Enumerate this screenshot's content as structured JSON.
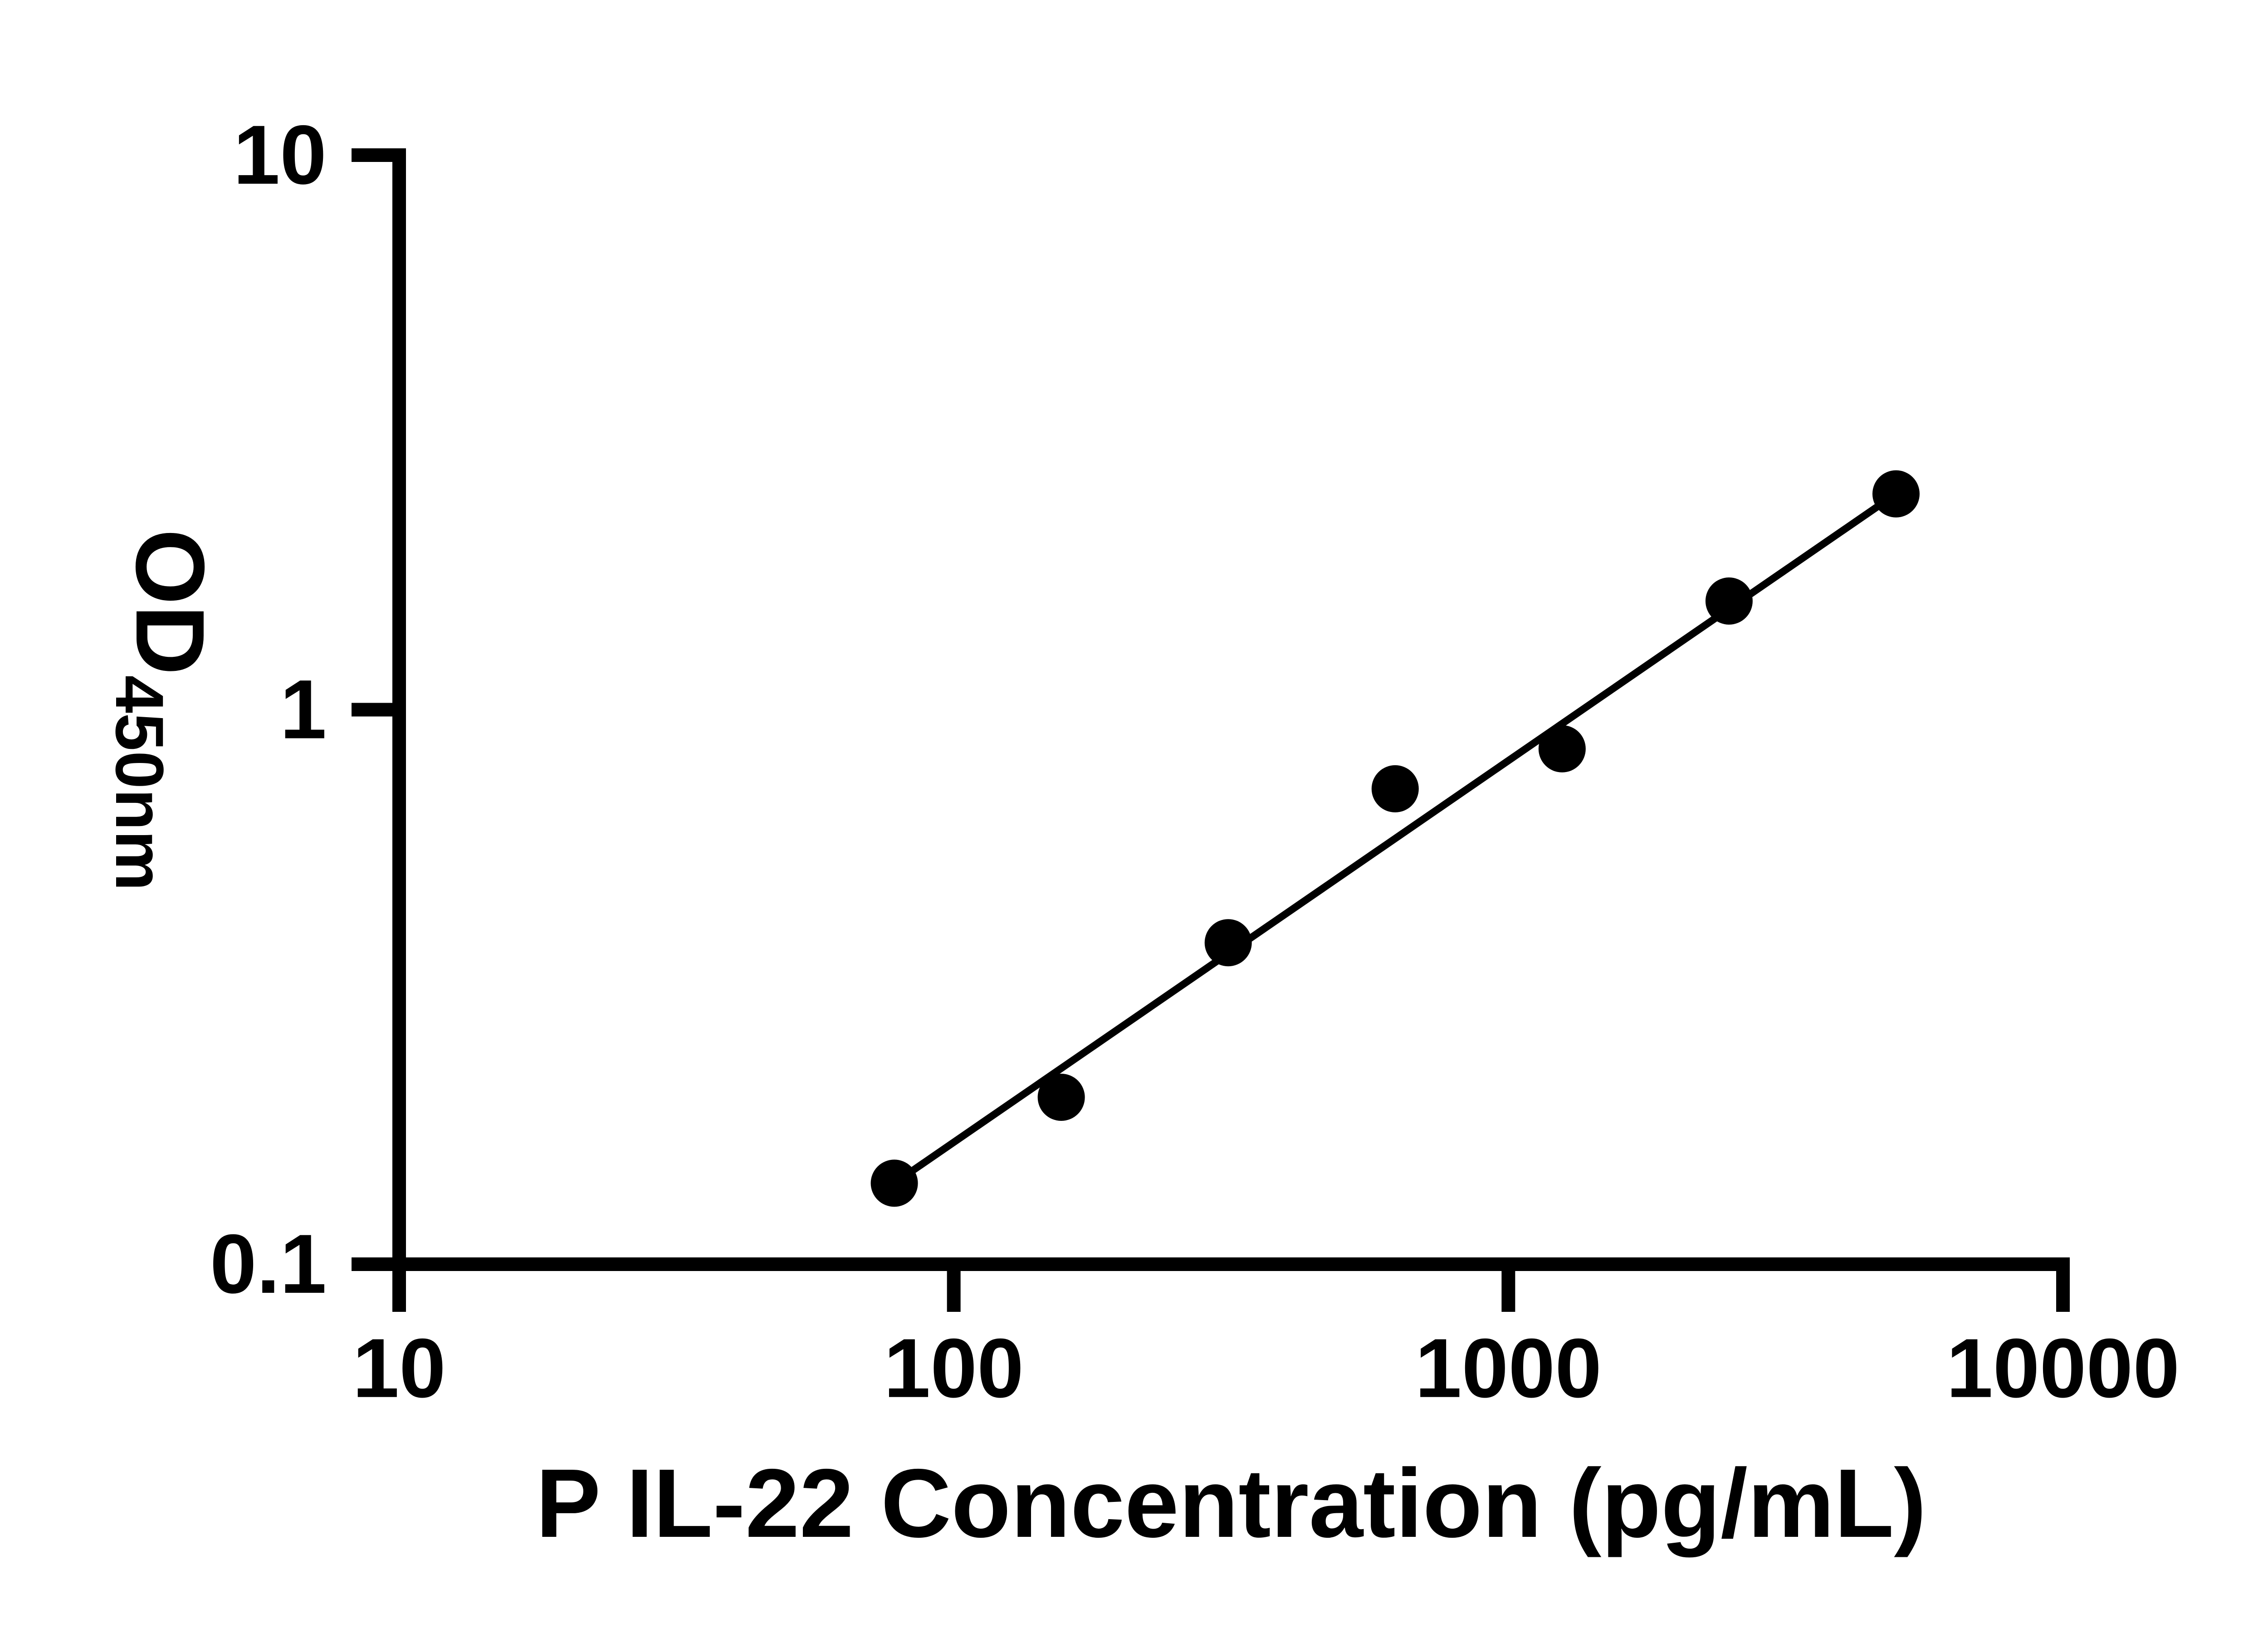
{
  "chart_data": {
    "type": "scatter",
    "title": "",
    "xlabel": "P IL-22 Concentration (pg/mL)",
    "ylabel_main": "OD",
    "ylabel_sub": "450nm",
    "x_scale": "log",
    "y_scale": "log",
    "xlim": [
      10,
      10000
    ],
    "ylim": [
      0.1,
      10
    ],
    "x_ticks": [
      10,
      100,
      1000,
      10000
    ],
    "x_tick_labels": [
      "10",
      "100",
      "1000",
      "10000"
    ],
    "y_ticks": [
      10,
      1,
      0.1
    ],
    "y_tick_labels": [
      "10",
      "1",
      "0.1"
    ],
    "points": [
      {
        "x": 78.125,
        "y": 0.14
      },
      {
        "x": 156.25,
        "y": 0.2
      },
      {
        "x": 312.5,
        "y": 0.38
      },
      {
        "x": 625,
        "y": 0.72
      },
      {
        "x": 1250,
        "y": 0.85
      },
      {
        "x": 2500,
        "y": 1.57
      },
      {
        "x": 5000,
        "y": 2.45
      }
    ],
    "trendline": {
      "style": "solid",
      "connects": "first-to-last"
    },
    "marker_color": "#000000",
    "line_color": "#000000",
    "axis_color": "#000000",
    "grid": false,
    "legend": false
  }
}
